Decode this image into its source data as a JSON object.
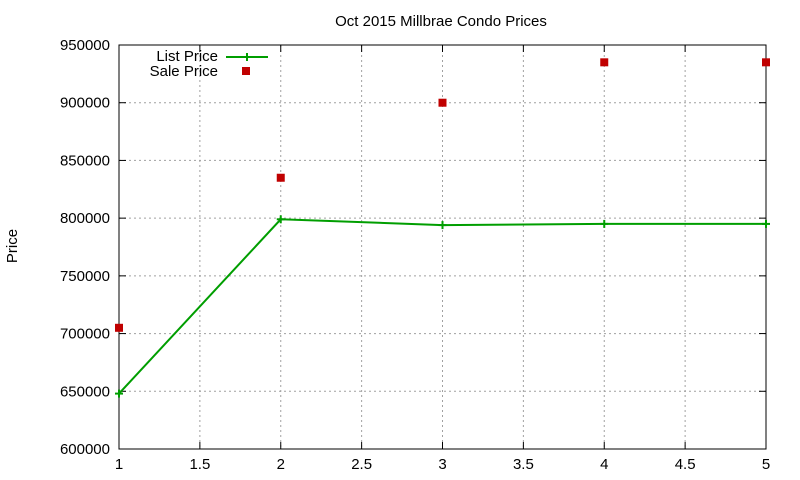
{
  "chart_data": {
    "type": "line",
    "title": "Oct 2015 Millbrae Condo Prices",
    "xlabel": "",
    "ylabel": "Price",
    "xlim": [
      1,
      5
    ],
    "ylim": [
      600000,
      950000
    ],
    "x_ticks": [
      1,
      1.5,
      2,
      2.5,
      3,
      3.5,
      4,
      4.5,
      5
    ],
    "y_ticks": [
      600000,
      650000,
      700000,
      750000,
      800000,
      850000,
      900000,
      950000
    ],
    "grid": true,
    "legend_position": "top-left",
    "series": [
      {
        "name": "List Price",
        "style": "line-with-plus-markers",
        "color": "#009e00",
        "x": [
          1,
          2,
          3,
          4,
          5
        ],
        "y": [
          648000,
          799000,
          794000,
          795000,
          795000
        ]
      },
      {
        "name": "Sale Price",
        "style": "square-markers",
        "color": "#c00000",
        "x": [
          1,
          2,
          3,
          4,
          5
        ],
        "y": [
          705000,
          835000,
          900000,
          935000,
          935000
        ]
      }
    ]
  }
}
